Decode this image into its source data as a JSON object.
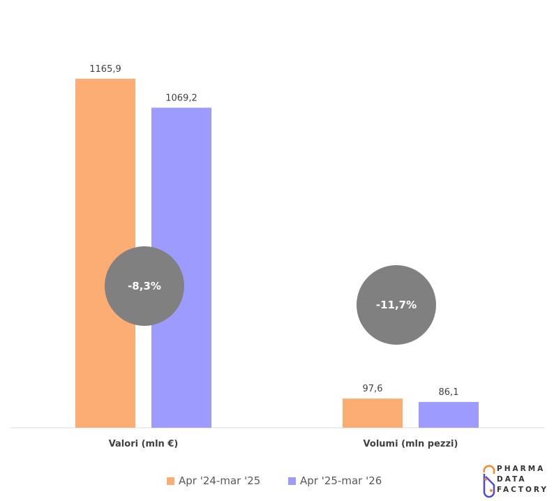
{
  "chart_data": {
    "type": "bar",
    "categories": [
      "Valori (mln €)",
      "Volumi (mln pezzi)"
    ],
    "series": [
      {
        "name": "Apr '24-mar '25",
        "color": "#FBAD73",
        "values": [
          1165.9,
          97.6
        ],
        "labels": [
          "1165,9",
          "97,6"
        ]
      },
      {
        "name": "Apr '25-mar '26",
        "color": "#9E9BFF",
        "values": [
          1069.2,
          86.1
        ],
        "labels": [
          "1069,2",
          "86,1"
        ]
      }
    ],
    "annotations": [
      "-8,3%",
      "-11,7%"
    ],
    "annotation_color": "#808080",
    "ylim": [
      0,
      1429
    ],
    "grid": false,
    "legend": "bottom"
  },
  "logo": {
    "text": [
      "PHARMA",
      "DATA",
      "FACTORY"
    ]
  }
}
